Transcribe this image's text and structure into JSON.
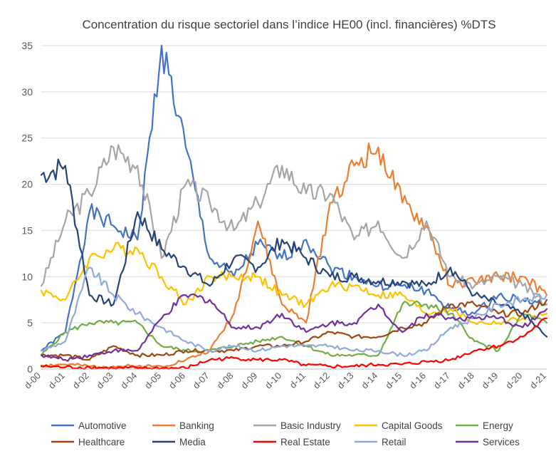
{
  "chart_data": {
    "type": "line",
    "title": "Concentration du risque sectoriel dans l’indice HE00 (incl. financières) %DTS",
    "xlabel": "",
    "ylabel": "",
    "ylim": [
      0,
      35
    ],
    "yticks": [
      0,
      5,
      10,
      15,
      20,
      25,
      30,
      35
    ],
    "x": [
      "d-00",
      "d-01",
      "d-02",
      "d-03",
      "d-04",
      "d-05",
      "d-06",
      "d-07",
      "d-08",
      "d-09",
      "d-10",
      "d-11",
      "d-12",
      "d-13",
      "d-14",
      "d-15",
      "d-16",
      "d-17",
      "d-18",
      "d-19",
      "d-20",
      "d-21"
    ],
    "legend_position": "bottom",
    "grid": true,
    "series": [
      {
        "name": "Automotive",
        "color": "#4472c4",
        "values": [
          2.0,
          4.0,
          17.0,
          15.5,
          14.0,
          35.0,
          24.0,
          12.0,
          10.0,
          13.5,
          12.0,
          14.0,
          11.0,
          10.0,
          9.0,
          9.0,
          8.5,
          6.5,
          6.0,
          8.0,
          7.5,
          7.0
        ]
      },
      {
        "name": "Banking",
        "color": "#ed7d31",
        "values": [
          0.4,
          0.5,
          0.3,
          0.3,
          0.3,
          0.3,
          1.0,
          2.0,
          6.0,
          16.0,
          7.0,
          5.0,
          18.0,
          22.0,
          24.0,
          18.0,
          15.5,
          9.0,
          9.5,
          10.0,
          10.0,
          8.0
        ]
      },
      {
        "name": "Basic Industry",
        "color": "#a5a5a5",
        "values": [
          9.0,
          16.0,
          19.0,
          24.0,
          22.0,
          12.0,
          20.0,
          18.0,
          15.0,
          18.0,
          22.0,
          19.0,
          19.0,
          14.0,
          16.0,
          12.0,
          16.0,
          10.0,
          9.0,
          10.0,
          9.0,
          7.0
        ]
      },
      {
        "name": "Capital Goods",
        "color": "#ffc000",
        "values": [
          8.5,
          7.5,
          12.0,
          13.0,
          13.0,
          10.0,
          7.0,
          10.0,
          10.0,
          10.0,
          8.0,
          7.0,
          9.0,
          9.0,
          8.0,
          8.0,
          6.0,
          6.5,
          5.0,
          5.0,
          5.5,
          6.0
        ]
      },
      {
        "name": "Energy",
        "color": "#70ad47",
        "values": [
          1.5,
          4.0,
          5.0,
          5.0,
          5.0,
          2.5,
          2.0,
          2.0,
          2.5,
          3.0,
          3.5,
          2.5,
          1.5,
          1.5,
          1.5,
          7.0,
          7.0,
          6.0,
          3.0,
          2.0,
          6.0,
          5.0
        ]
      },
      {
        "name": "Healthcare",
        "color": "#9e480e",
        "values": [
          1.5,
          1.5,
          1.0,
          2.5,
          1.5,
          1.5,
          2.0,
          2.0,
          2.0,
          2.5,
          2.5,
          3.0,
          4.0,
          3.5,
          3.5,
          4.5,
          5.0,
          7.0,
          7.0,
          6.0,
          6.0,
          7.5
        ]
      },
      {
        "name": "Media",
        "color": "#264478",
        "values": [
          21.0,
          22.0,
          8.0,
          7.0,
          17.0,
          13.0,
          11.0,
          9.0,
          12.0,
          11.0,
          14.0,
          12.0,
          10.0,
          10.0,
          9.5,
          9.5,
          9.0,
          11.0,
          8.0,
          7.0,
          6.0,
          3.5
        ]
      },
      {
        "name": "Real Estate",
        "color": "#ff0000",
        "values": [
          0.3,
          0.2,
          0.2,
          0.1,
          0.1,
          0.1,
          0.1,
          1.0,
          1.2,
          1.0,
          1.0,
          0.4,
          0.3,
          0.3,
          0.5,
          0.5,
          0.8,
          1.0,
          2.0,
          2.5,
          3.5,
          5.5
        ]
      },
      {
        "name": "Retail",
        "color": "#8faadc",
        "values": [
          2.0,
          3.0,
          11.0,
          8.0,
          6.0,
          4.5,
          3.0,
          2.0,
          2.5,
          2.0,
          2.5,
          2.5,
          2.5,
          2.0,
          2.0,
          1.5,
          2.0,
          4.5,
          5.5,
          7.0,
          7.5,
          8.0
        ]
      },
      {
        "name": "Services",
        "color": "#7030a0",
        "values": [
          1.5,
          1.0,
          1.5,
          2.0,
          2.0,
          5.5,
          8.0,
          7.5,
          4.5,
          4.5,
          6.0,
          4.0,
          5.0,
          5.0,
          7.0,
          4.0,
          6.0,
          5.5,
          5.5,
          5.5,
          4.5,
          6.5
        ]
      }
    ]
  }
}
